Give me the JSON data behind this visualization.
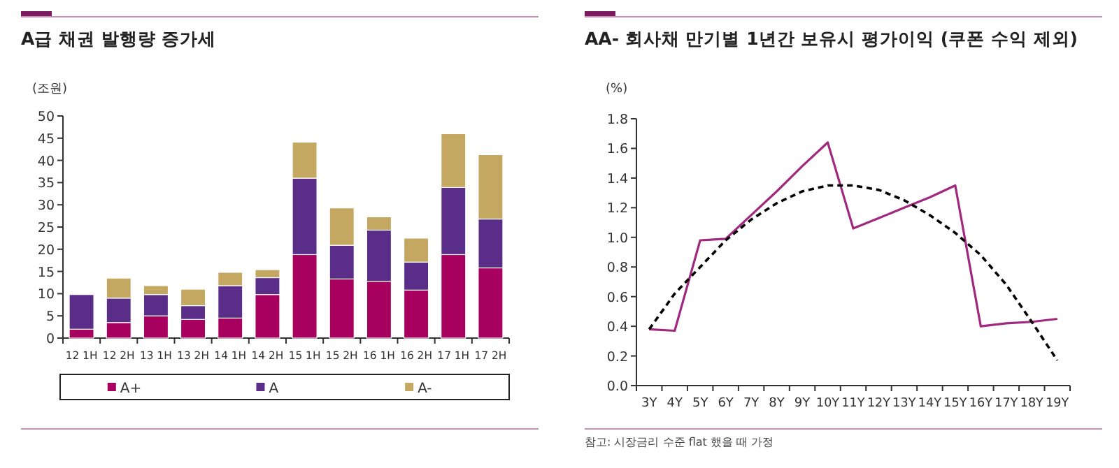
{
  "chart_data": [
    {
      "type": "bar",
      "title": "A급 채권 발행량 증가세",
      "ylabel": "(조원)",
      "stacked": true,
      "legend": "bottom",
      "categories": [
        "12 1H",
        "12 2H",
        "13 1H",
        "13 2H",
        "14 1H",
        "14 2H",
        "15 1H",
        "15 2H",
        "16 1H",
        "16 2H",
        "17 1H",
        "17 2H"
      ],
      "series": [
        {
          "name": "A+",
          "color": "#a8005f",
          "values": [
            2,
            3.5,
            5,
            4.2,
            4.5,
            9.8,
            18.8,
            13.3,
            12.8,
            10.8,
            18.8,
            15.8
          ]
        },
        {
          "name": "A",
          "color": "#5a2d88",
          "values": [
            7.8,
            5.5,
            4.8,
            3.1,
            7.3,
            3.8,
            17.2,
            7.6,
            11.5,
            6.3,
            15.1,
            11
          ]
        },
        {
          "name": "A-",
          "color": "#c4a862",
          "values": [
            0,
            4.5,
            2,
            3.7,
            3,
            1.8,
            8.1,
            8.4,
            3,
            5.4,
            12.1,
            14.5
          ]
        }
      ],
      "ylim": [
        0,
        50
      ],
      "yticks": [
        0,
        5,
        10,
        15,
        20,
        25,
        30,
        35,
        40,
        45,
        50
      ]
    },
    {
      "type": "line",
      "title": "AA- 회사채 만기별 1년간 보유시 평가이익 (쿠폰 수익 제외)",
      "ylabel": "(%)",
      "categories": [
        "3Y",
        "4Y",
        "5Y",
        "6Y",
        "7Y",
        "8Y",
        "9Y",
        "10Y",
        "11Y",
        "12Y",
        "13Y",
        "14Y",
        "15Y",
        "16Y",
        "17Y",
        "18Y",
        "19Y"
      ],
      "series": [
        {
          "color": "#a0287f",
          "line_style": "solid",
          "values": [
            0.38,
            0.37,
            0.98,
            0.99,
            1.15,
            1.31,
            1.48,
            1.64,
            1.06,
            1.13,
            1.2,
            1.27,
            1.35,
            0.4,
            0.42,
            0.43,
            0.45
          ]
        },
        {
          "type": "line",
          "color": "#000000",
          "line_style": "dashed",
          "values": [
            0.38,
            0.62,
            0.8,
            0.98,
            1.12,
            1.23,
            1.31,
            1.35,
            1.35,
            1.32,
            1.25,
            1.15,
            1.03,
            0.88,
            0.68,
            0.43,
            0.17
          ]
        }
      ],
      "ylim": [
        0,
        1.8
      ],
      "yticks": [
        {
          "value": 0,
          "label": "0.0"
        },
        0.2,
        0.4,
        0.6,
        0.8,
        {
          "value": 1,
          "label": "1.0"
        },
        1.2,
        1.4,
        1.6,
        1.8
      ],
      "annotations": [
        "참고: 시장금리 수준 flat 했을 때 가정"
      ]
    }
  ]
}
